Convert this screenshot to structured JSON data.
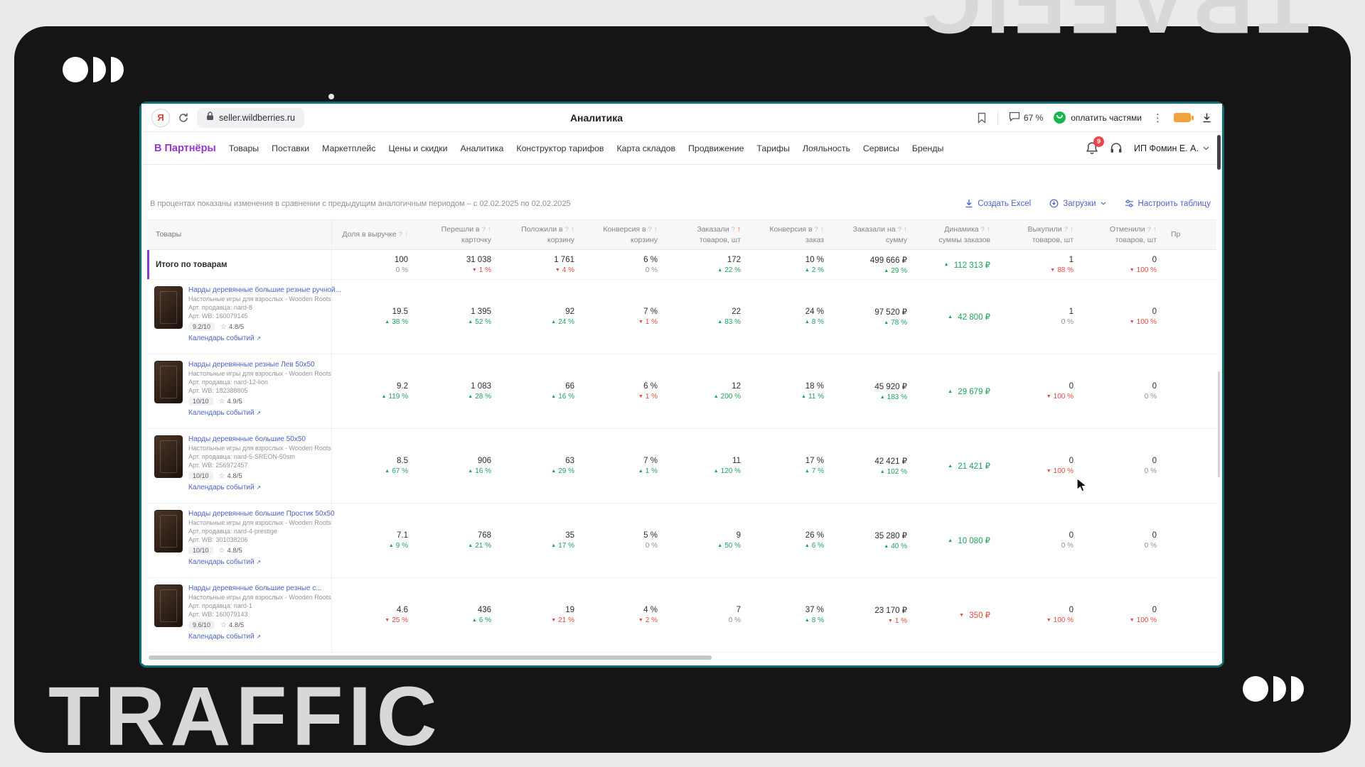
{
  "watermark": {
    "text": "TRAFFIC"
  },
  "browser": {
    "url": "seller.wildberries.ru",
    "page_title": "Аналитика",
    "zoom_badge": "67 %",
    "split_label": "оплатить частями"
  },
  "nav": {
    "brand": "В Партнёры",
    "items": [
      "Товары",
      "Поставки",
      "Маркетплейс",
      "Цены и скидки",
      "Аналитика",
      "Конструктор тарифов",
      "Карта складов",
      "Продвижение",
      "Тарифы",
      "Лояльность",
      "Сервисы",
      "Бренды"
    ],
    "notifications_badge": "9",
    "account": "ИП Фомин Е. А."
  },
  "subheader": {
    "note": "В процентах показаны изменения в сравнении с предыдущим аналогичным периодом – с 02.02.2025 по 02.02.2025",
    "actions": [
      {
        "label": "Создать Excel"
      },
      {
        "label": "Загрузки"
      },
      {
        "label": "Настроить таблицу"
      }
    ]
  },
  "table": {
    "calendar_link": "Календарь событий",
    "columns": [
      {
        "title": "Товары"
      },
      {
        "l1": "Доля в выручке",
        "l2": ""
      },
      {
        "l1": "Перешли в",
        "l2": "карточку"
      },
      {
        "l1": "Положили в",
        "l2": "корзину"
      },
      {
        "l1": "Конверсия в",
        "l2": "корзину"
      },
      {
        "l1": "Заказали",
        "l2": "товаров, шт",
        "sorted": true
      },
      {
        "l1": "Конверсия в",
        "l2": "заказ"
      },
      {
        "l1": "Заказали на",
        "l2": "сумму"
      },
      {
        "l1": "Динамика",
        "l2": "суммы заказов"
      },
      {
        "l1": "Выкупили",
        "l2": "товаров, шт"
      },
      {
        "l1": "Отменили",
        "l2": "товаров, шт"
      },
      {
        "l1": "Пр",
        "cut": true
      }
    ],
    "totals": {
      "label": "Итого по товарам",
      "cells": [
        {
          "v": "100",
          "d": "0 %",
          "dir": "flat"
        },
        {
          "v": "31 038",
          "d": "1 %",
          "dir": "down"
        },
        {
          "v": "1 761",
          "d": "4 %",
          "dir": "down"
        },
        {
          "v": "6 %",
          "d": "0 %",
          "dir": "flat"
        },
        {
          "v": "172",
          "d": "22 %",
          "dir": "up"
        },
        {
          "v": "10 %",
          "d": "2 %",
          "dir": "up"
        },
        {
          "v": "499 666 ₽",
          "d": "29 %",
          "dir": "up"
        },
        {
          "v": "112 313 ₽",
          "dir": "up",
          "dyn": true
        },
        {
          "v": "1",
          "d": "88 %",
          "dir": "down"
        },
        {
          "v": "0",
          "d": "100 %",
          "dir": "down"
        }
      ]
    },
    "rows": [
      {
        "name": "Нарды деревянные большие резные ручной...",
        "category": "Настольные игры для взрослых - Wooden Roots",
        "seller_sku": "Арт. продавца: nard-8",
        "wb_sku": "Арт. WB: 160079145",
        "score": "9.2/10",
        "rating": "4.8/5",
        "cells": [
          {
            "v": "19.5",
            "d": "38 %",
            "dir": "up"
          },
          {
            "v": "1 395",
            "d": "52 %",
            "dir": "up"
          },
          {
            "v": "92",
            "d": "24 %",
            "dir": "up"
          },
          {
            "v": "7 %",
            "d": "1 %",
            "dir": "down"
          },
          {
            "v": "22",
            "d": "83 %",
            "dir": "up"
          },
          {
            "v": "24 %",
            "d": "8 %",
            "dir": "up"
          },
          {
            "v": "97 520 ₽",
            "d": "78 %",
            "dir": "up"
          },
          {
            "v": "42 800 ₽",
            "dir": "up",
            "dyn": true
          },
          {
            "v": "1",
            "d": "0 %",
            "dir": "flat"
          },
          {
            "v": "0",
            "d": "100 %",
            "dir": "down"
          }
        ]
      },
      {
        "name": "Нарды деревянные резные Лев 50х50",
        "category": "Настольные игры для взрослых - Wooden Roots",
        "seller_sku": "Арт. продавца: nard-12-lion",
        "wb_sku": "Арт. WB: 182388805",
        "score": "10/10",
        "rating": "4.9/5",
        "cells": [
          {
            "v": "9.2",
            "d": "119 %",
            "dir": "up"
          },
          {
            "v": "1 083",
            "d": "28 %",
            "dir": "up"
          },
          {
            "v": "66",
            "d": "16 %",
            "dir": "up"
          },
          {
            "v": "6 %",
            "d": "1 %",
            "dir": "down"
          },
          {
            "v": "12",
            "d": "200 %",
            "dir": "up"
          },
          {
            "v": "18 %",
            "d": "11 %",
            "dir": "up"
          },
          {
            "v": "45 920 ₽",
            "d": "183 %",
            "dir": "up"
          },
          {
            "v": "29 679 ₽",
            "dir": "up",
            "dyn": true
          },
          {
            "v": "0",
            "d": "100 %",
            "dir": "down"
          },
          {
            "v": "0",
            "d": "0 %",
            "dir": "flat"
          }
        ]
      },
      {
        "name": "Нарды деревянные большие 50х50",
        "category": "Настольные игры для взрослых - Wooden Roots",
        "seller_sku": "Арт. продавца: nard-5-SREON-50sm",
        "wb_sku": "Арт. WB: 256972457",
        "score": "10/10",
        "rating": "4.8/5",
        "cells": [
          {
            "v": "8.5",
            "d": "67 %",
            "dir": "up"
          },
          {
            "v": "906",
            "d": "16 %",
            "dir": "up"
          },
          {
            "v": "63",
            "d": "29 %",
            "dir": "up"
          },
          {
            "v": "7 %",
            "d": "1 %",
            "dir": "up"
          },
          {
            "v": "11",
            "d": "120 %",
            "dir": "up"
          },
          {
            "v": "17 %",
            "d": "7 %",
            "dir": "up"
          },
          {
            "v": "42 421 ₽",
            "d": "102 %",
            "dir": "up"
          },
          {
            "v": "21 421 ₽",
            "dir": "up",
            "dyn": true
          },
          {
            "v": "0",
            "d": "100 %",
            "dir": "down"
          },
          {
            "v": "0",
            "d": "0 %",
            "dir": "flat"
          }
        ]
      },
      {
        "name": "Нарды деревянные большие Простик 50х50",
        "category": "Настольные игры для взрослых - Wooden Roots",
        "seller_sku": "Арт. продавца: nard-4-prestige",
        "wb_sku": "Арт. WB: 301038206",
        "score": "10/10",
        "rating": "4.8/5",
        "cells": [
          {
            "v": "7.1",
            "d": "9 %",
            "dir": "up"
          },
          {
            "v": "768",
            "d": "21 %",
            "dir": "up"
          },
          {
            "v": "35",
            "d": "17 %",
            "dir": "up"
          },
          {
            "v": "5 %",
            "d": "0 %",
            "dir": "flat"
          },
          {
            "v": "9",
            "d": "50 %",
            "dir": "up"
          },
          {
            "v": "26 %",
            "d": "6 %",
            "dir": "up"
          },
          {
            "v": "35 280 ₽",
            "d": "40 %",
            "dir": "up"
          },
          {
            "v": "10 080 ₽",
            "dir": "up",
            "dyn": true
          },
          {
            "v": "0",
            "d": "0 %",
            "dir": "flat"
          },
          {
            "v": "0",
            "d": "0 %",
            "dir": "flat"
          }
        ]
      },
      {
        "name": "Нарды деревянные большие резные с...",
        "category": "Настольные игры для взрослых - Wooden Roots",
        "seller_sku": "Арт. продавца: nard-1",
        "wb_sku": "Арт. WB: 160079143",
        "score": "9.6/10",
        "rating": "4.8/5",
        "cells": [
          {
            "v": "4.6",
            "d": "25 %",
            "dir": "down"
          },
          {
            "v": "436",
            "d": "6 %",
            "dir": "up"
          },
          {
            "v": "19",
            "d": "21 %",
            "dir": "down"
          },
          {
            "v": "4 %",
            "d": "2 %",
            "dir": "down"
          },
          {
            "v": "7",
            "d": "0 %",
            "dir": "flat"
          },
          {
            "v": "37 %",
            "d": "8 %",
            "dir": "up"
          },
          {
            "v": "23 170 ₽",
            "d": "1 %",
            "dir": "down"
          },
          {
            "v": "350 ₽",
            "dir": "down",
            "dyn": true
          },
          {
            "v": "0",
            "d": "100 %",
            "dir": "down"
          },
          {
            "v": "0",
            "d": "100 %",
            "dir": "down"
          }
        ]
      }
    ]
  },
  "colors": {
    "accent_purple": "#8639d6",
    "up_green": "#1ea25a",
    "down_red": "#e3493f",
    "link_blue": "#4a63c8",
    "sort_orange": "#f4611e",
    "browser_border_teal": "#0d6e72"
  }
}
